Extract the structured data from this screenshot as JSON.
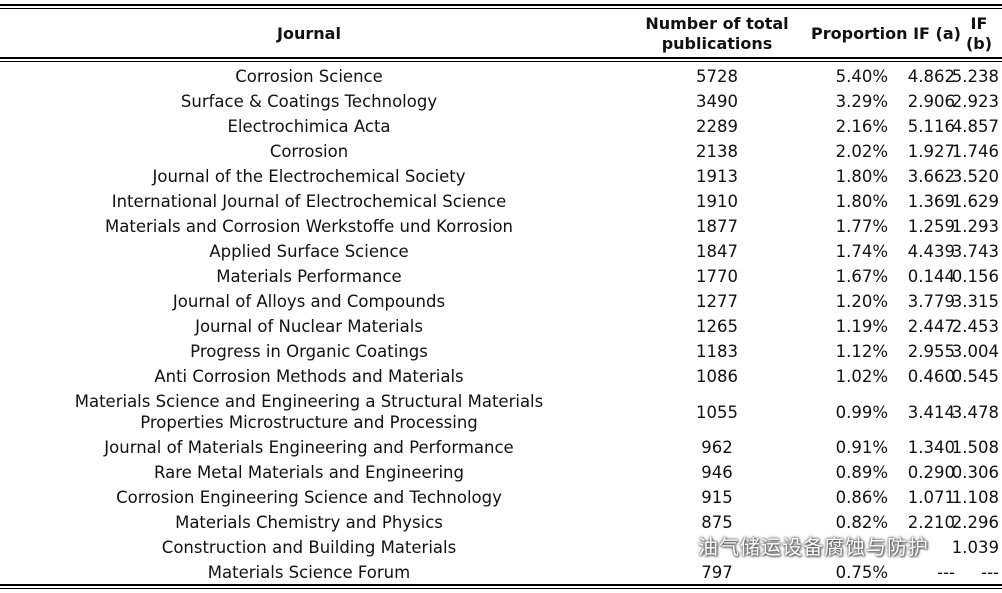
{
  "table": {
    "headers": {
      "journal": "Journal",
      "number": "Number of total publications",
      "proportion_if_a": "Proportion IF (a)",
      "if_b": "IF (b)"
    },
    "rows": [
      {
        "journal": "Corrosion Science",
        "number": "5728",
        "proportion": "5.40%",
        "if_a": "4.862",
        "if_b": "5.238"
      },
      {
        "journal": "Surface & Coatings Technology",
        "number": "3490",
        "proportion": "3.29%",
        "if_a": "2.906",
        "if_b": "2.923"
      },
      {
        "journal": "Electrochimica Acta",
        "number": "2289",
        "proportion": "2.16%",
        "if_a": "5.116",
        "if_b": "4.857"
      },
      {
        "journal": "Corrosion",
        "number": "2138",
        "proportion": "2.02%",
        "if_a": "1.927",
        "if_b": "1.746"
      },
      {
        "journal": "Journal of the Electrochemical Society",
        "number": "1913",
        "proportion": "1.80%",
        "if_a": "3.662",
        "if_b": "3.520"
      },
      {
        "journal": "International Journal of Electrochemical Science",
        "number": "1910",
        "proportion": "1.80%",
        "if_a": "1.369",
        "if_b": "1.629"
      },
      {
        "journal": "Materials and Corrosion Werkstoffe und Korrosion",
        "number": "1877",
        "proportion": "1.77%",
        "if_a": "1.259",
        "if_b": "1.293"
      },
      {
        "journal": "Applied Surface Science",
        "number": "1847",
        "proportion": "1.74%",
        "if_a": "4.439",
        "if_b": "3.743"
      },
      {
        "journal": "Materials Performance",
        "number": "1770",
        "proportion": "1.67%",
        "if_a": "0.144",
        "if_b": "0.156"
      },
      {
        "journal": "Journal of Alloys and Compounds",
        "number": "1277",
        "proportion": "1.20%",
        "if_a": "3.779",
        "if_b": "3.315"
      },
      {
        "journal": "Journal of Nuclear Materials",
        "number": "1265",
        "proportion": "1.19%",
        "if_a": "2.447",
        "if_b": "2.453"
      },
      {
        "journal": "Progress in Organic Coatings",
        "number": "1183",
        "proportion": "1.12%",
        "if_a": "2.955",
        "if_b": "3.004"
      },
      {
        "journal": "Anti Corrosion Methods and Materials",
        "number": "1086",
        "proportion": "1.02%",
        "if_a": "0.460",
        "if_b": "0.545"
      },
      {
        "journal": "Materials Science and Engineering a Structural Materials Properties Microstructure and Processing",
        "number": "1055",
        "proportion": "0.99%",
        "if_a": "3.414",
        "if_b": "3.478"
      },
      {
        "journal": "Journal of Materials Engineering and Performance",
        "number": "962",
        "proportion": "0.91%",
        "if_a": "1.340",
        "if_b": "1.508"
      },
      {
        "journal": "Rare Metal Materials and Engineering",
        "number": "946",
        "proportion": "0.89%",
        "if_a": "0.290",
        "if_b": "0.306"
      },
      {
        "journal": "Corrosion Engineering Science and Technology",
        "number": "915",
        "proportion": "0.86%",
        "if_a": "1.071",
        "if_b": "1.108"
      },
      {
        "journal": "Materials Chemistry and Physics",
        "number": "875",
        "proportion": "0.82%",
        "if_a": "2.210",
        "if_b": "2.296"
      },
      {
        "journal": "Construction and Building Materials",
        "number": "",
        "proportion": "",
        "if_a": "",
        "if_b": "1.039"
      },
      {
        "journal": "Materials Science Forum",
        "number": "797",
        "proportion": "0.75%",
        "if_a": "---",
        "if_b": "---"
      }
    ]
  },
  "watermark": {
    "text": "油气储运设备腐蚀与防护",
    "icon": "wechat-icon"
  }
}
